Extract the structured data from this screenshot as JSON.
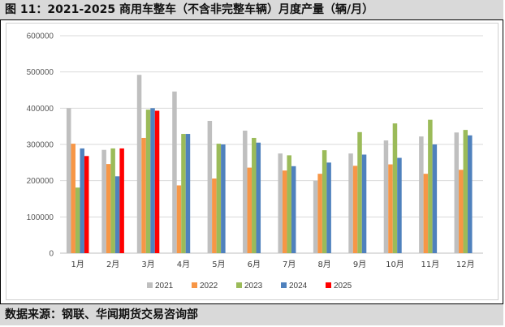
{
  "title": "图 11：2021-2025 商用车整车（不含非完整车辆）月度产量（辆/月）",
  "source": "数据来源：钢联、华闻期货交易咨询部",
  "chart_data": {
    "type": "bar",
    "title": "",
    "xlabel": "",
    "ylabel": "",
    "ylim": [
      0,
      600000
    ],
    "yticks": [
      0,
      100000,
      200000,
      300000,
      400000,
      500000,
      600000
    ],
    "ytick_labels": [
      "0",
      "100000",
      "200000",
      "300000",
      "400000",
      "500000",
      "600000"
    ],
    "grid": true,
    "legend_position": "bottom",
    "categories": [
      "1月",
      "2月",
      "3月",
      "4月",
      "5月",
      "6月",
      "7月",
      "8月",
      "9月",
      "10月",
      "11月",
      "12月"
    ],
    "series": [
      {
        "name": "2021",
        "color": "#bfbfbf",
        "values": [
          400000,
          285000,
          492000,
          446000,
          365000,
          338000,
          275000,
          200000,
          275000,
          311000,
          322000,
          333000
        ]
      },
      {
        "name": "2022",
        "color": "#f79646",
        "values": [
          302000,
          246000,
          318000,
          187000,
          206000,
          236000,
          228000,
          219000,
          241000,
          245000,
          219000,
          230000
        ]
      },
      {
        "name": "2023",
        "color": "#9bbb59",
        "values": [
          181000,
          289000,
          396000,
          329000,
          302000,
          318000,
          270000,
          284000,
          334000,
          358000,
          368000,
          340000
        ]
      },
      {
        "name": "2024",
        "color": "#4f81bd",
        "values": [
          289000,
          212000,
          400000,
          329000,
          300000,
          305000,
          240000,
          250000,
          272000,
          263000,
          300000,
          325000
        ]
      },
      {
        "name": "2025",
        "color": "#ff0000",
        "values": [
          268000,
          289000,
          393000,
          null,
          null,
          null,
          null,
          null,
          null,
          null,
          null,
          null
        ]
      }
    ]
  }
}
